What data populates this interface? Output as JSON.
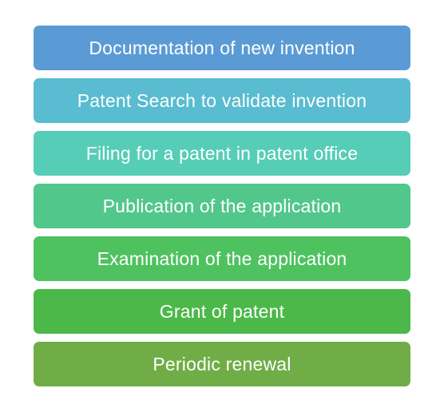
{
  "diagram": {
    "steps": [
      {
        "label": "Documentation of new invention",
        "color": "#5b9bd5"
      },
      {
        "label": "Patent Search to validate invention",
        "color": "#59bcd0"
      },
      {
        "label": "Filing for a patent in patent office",
        "color": "#56cdb7"
      },
      {
        "label": "Publication of the application",
        "color": "#52c78b"
      },
      {
        "label": "Examination of the application",
        "color": "#4fc260"
      },
      {
        "label": "Grant of patent",
        "color": "#4cb84a"
      },
      {
        "label": "Periodic renewal",
        "color": "#70ad47"
      }
    ]
  }
}
